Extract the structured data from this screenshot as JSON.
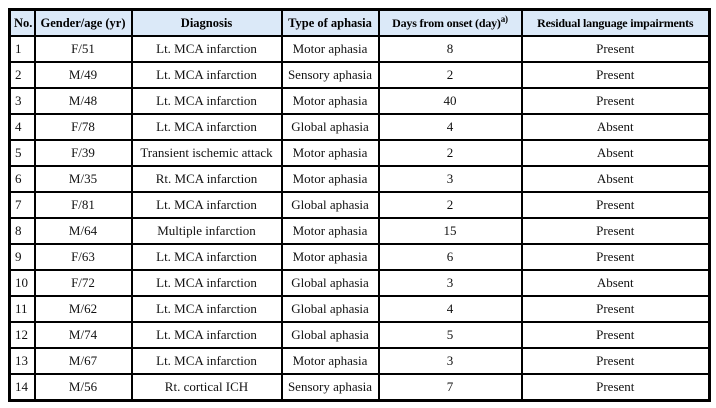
{
  "page": {
    "background_color": "#ffffff"
  },
  "table": {
    "header_bg": "#dbe9f8",
    "border_color": "#000000",
    "columns": [
      {
        "key": "no",
        "label": "No."
      },
      {
        "key": "gender_age",
        "label": "Gender/age (yr)"
      },
      {
        "key": "diagnosis",
        "label": "Diagnosis"
      },
      {
        "key": "aphasia_type",
        "label": "Type of aphasia"
      },
      {
        "key": "days_from_onset",
        "label": "Days from onset (day)",
        "sup": "a)"
      },
      {
        "key": "residual",
        "label": "Residual language impairments"
      }
    ],
    "rows": [
      {
        "no": "1",
        "gender_age": "F/51",
        "diagnosis": "Lt. MCA infarction",
        "aphasia_type": "Motor aphasia",
        "days_from_onset": "8",
        "residual": "Present"
      },
      {
        "no": "2",
        "gender_age": "M/49",
        "diagnosis": "Lt. MCA infarction",
        "aphasia_type": "Sensory aphasia",
        "days_from_onset": "2",
        "residual": "Present"
      },
      {
        "no": "3",
        "gender_age": "M/48",
        "diagnosis": "Lt. MCA infarction",
        "aphasia_type": "Motor aphasia",
        "days_from_onset": "40",
        "residual": "Present"
      },
      {
        "no": "4",
        "gender_age": "F/78",
        "diagnosis": "Lt. MCA infarction",
        "aphasia_type": "Global aphasia",
        "days_from_onset": "4",
        "residual": "Absent"
      },
      {
        "no": "5",
        "gender_age": "F/39",
        "diagnosis": "Transient ischemic attack",
        "aphasia_type": "Motor aphasia",
        "days_from_onset": "2",
        "residual": "Absent"
      },
      {
        "no": "6",
        "gender_age": "M/35",
        "diagnosis": "Rt. MCA infarction",
        "aphasia_type": "Motor aphasia",
        "days_from_onset": "3",
        "residual": "Absent"
      },
      {
        "no": "7",
        "gender_age": "F/81",
        "diagnosis": "Lt. MCA infarction",
        "aphasia_type": "Global aphasia",
        "days_from_onset": "2",
        "residual": "Present"
      },
      {
        "no": "8",
        "gender_age": "M/64",
        "diagnosis": "Multiple infarction",
        "aphasia_type": "Motor aphasia",
        "days_from_onset": "15",
        "residual": "Present"
      },
      {
        "no": "9",
        "gender_age": "F/63",
        "diagnosis": "Lt. MCA infarction",
        "aphasia_type": "Motor aphasia",
        "days_from_onset": "6",
        "residual": "Present"
      },
      {
        "no": "10",
        "gender_age": "F/72",
        "diagnosis": "Lt. MCA infarction",
        "aphasia_type": "Global aphasia",
        "days_from_onset": "3",
        "residual": "Absent"
      },
      {
        "no": "11",
        "gender_age": "M/62",
        "diagnosis": "Lt. MCA infarction",
        "aphasia_type": "Global aphasia",
        "days_from_onset": "4",
        "residual": "Present"
      },
      {
        "no": "12",
        "gender_age": "M/74",
        "diagnosis": "Lt. MCA infarction",
        "aphasia_type": "Global aphasia",
        "days_from_onset": "5",
        "residual": "Present"
      },
      {
        "no": "13",
        "gender_age": "M/67",
        "diagnosis": "Lt. MCA infarction",
        "aphasia_type": "Motor aphasia",
        "days_from_onset": "3",
        "residual": "Present"
      },
      {
        "no": "14",
        "gender_age": "M/56",
        "diagnosis": "Rt. cortical ICH",
        "aphasia_type": "Sensory aphasia",
        "days_from_onset": "7",
        "residual": "Present"
      }
    ]
  }
}
